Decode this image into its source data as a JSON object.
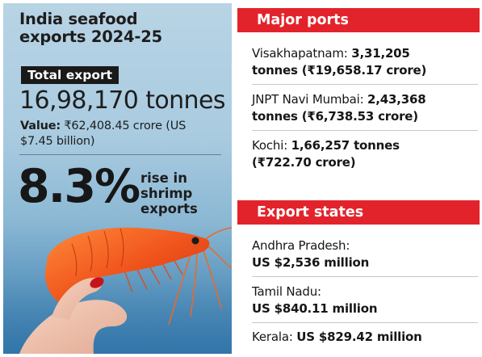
{
  "left": {
    "title_line1": "India seafood",
    "title_line2": "exports 2024-25",
    "total_label": "Total export",
    "total_tonnes": "16,98,170 tonnes",
    "value_prefix": "Value:",
    "value_line1_rest": " ₹62,408.45 crore (US",
    "value_line2": "$7.45 billion)",
    "shrimp_pct": "8.3%",
    "rise_line1": "rise in",
    "rise_line2": "shrimp",
    "rise_line3": "exports"
  },
  "ports": {
    "label": "Major ports",
    "items": [
      {
        "name": "Visakhapatnam:",
        "value_line1": "3,31,205",
        "value_line2": "tonnes (₹19,658.17 crore)"
      },
      {
        "name": "JNPT Navi Mumbai:",
        "value_line1": "2,43,368",
        "value_line2": "tonnes (₹6,738.53 crore)"
      },
      {
        "name": "Kochi:",
        "value_line1": "1,66,257 tonnes",
        "value_line2": "(₹722.70 crore)"
      }
    ]
  },
  "states": {
    "label": "Export states",
    "items": [
      {
        "name": "Andhra Pradesh:",
        "value": "US $2,536 million"
      },
      {
        "name": "Tamil Nadu:",
        "value": "US $840.11 million"
      },
      {
        "name": "Kerala:",
        "value": "US $829.42 million"
      }
    ]
  },
  "colors": {
    "accent_red": "#e3232b",
    "label_black": "#1a1a1a",
    "sky_blue": "#a9cbe0"
  },
  "icons": [
    "shrimp-photo",
    "hand-photo"
  ]
}
